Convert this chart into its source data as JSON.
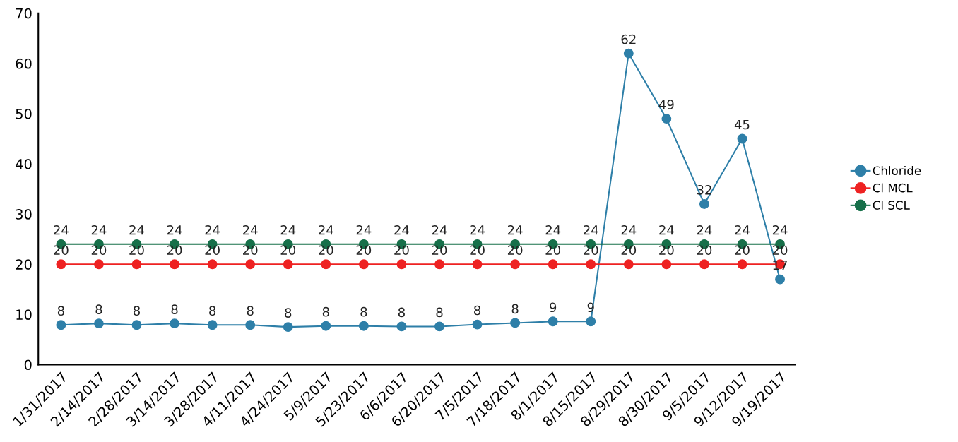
{
  "chart_data": {
    "type": "line",
    "categories": [
      "1/31/2017",
      "2/14/2017",
      "2/28/2017",
      "3/14/2017",
      "3/28/2017",
      "4/11/2017",
      "4/24/2017",
      "5/9/2017",
      "5/23/2017",
      "6/6/2017",
      "6/20/2017",
      "7/5/2017",
      "7/18/2017",
      "8/1/2017",
      "8/15/2017",
      "8/29/2017",
      "8/30/2017",
      "9/5/2017",
      "9/12/2017",
      "9/19/2017"
    ],
    "series": [
      {
        "name": "Chloride",
        "color": "#2e7fa8",
        "values": [
          7.9,
          8.2,
          7.9,
          8.2,
          7.9,
          7.9,
          7.5,
          7.7,
          7.7,
          7.6,
          7.6,
          8.0,
          8.3,
          8.6,
          8.6,
          62,
          49,
          32,
          45,
          17
        ],
        "value_labels": [
          "8",
          "8",
          "8",
          "8",
          "8",
          "8",
          "8",
          "8",
          "8",
          "8",
          "8",
          "8",
          "8",
          "9",
          "9",
          "62",
          "49",
          "32",
          "45",
          "17"
        ]
      },
      {
        "name": "Cl MCL",
        "color": "#ee2222",
        "values": [
          20,
          20,
          20,
          20,
          20,
          20,
          20,
          20,
          20,
          20,
          20,
          20,
          20,
          20,
          20,
          20,
          20,
          20,
          20,
          20
        ],
        "value_labels": [
          "20",
          "20",
          "20",
          "20",
          "20",
          "20",
          "20",
          "20",
          "20",
          "20",
          "20",
          "20",
          "20",
          "20",
          "20",
          "20",
          "20",
          "20",
          "20",
          "20"
        ]
      },
      {
        "name": "Cl SCL",
        "color": "#17704a",
        "values": [
          24,
          24,
          24,
          24,
          24,
          24,
          24,
          24,
          24,
          24,
          24,
          24,
          24,
          24,
          24,
          24,
          24,
          24,
          24,
          24
        ],
        "value_labels": [
          "24",
          "24",
          "24",
          "24",
          "24",
          "24",
          "24",
          "24",
          "24",
          "24",
          "24",
          "24",
          "24",
          "24",
          "24",
          "24",
          "24",
          "24",
          "24",
          "24"
        ]
      }
    ],
    "ylim": [
      0,
      70
    ],
    "yticks": [
      0,
      10,
      20,
      30,
      40,
      50,
      60,
      70
    ],
    "grid": false,
    "legend": "right",
    "marker": "circle",
    "line_style": "solid"
  }
}
